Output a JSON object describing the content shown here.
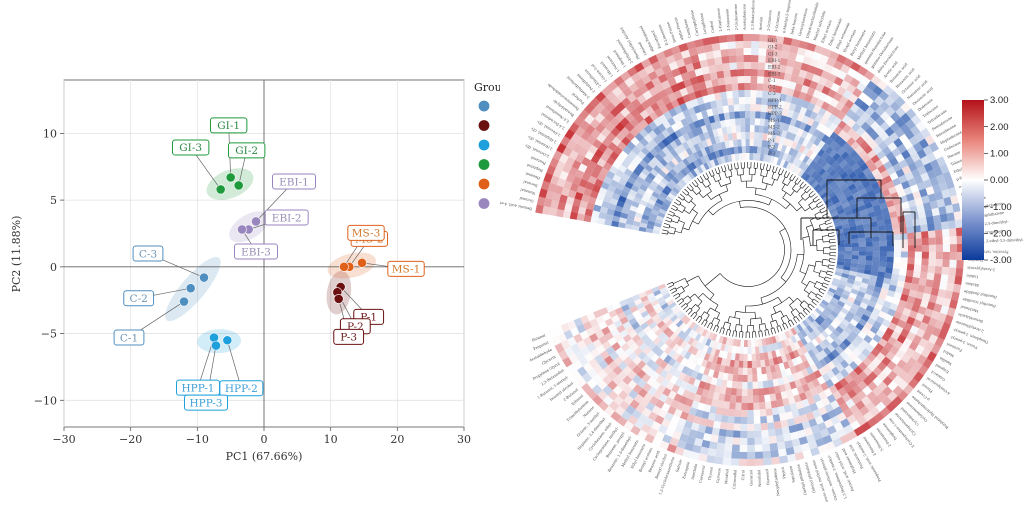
{
  "chart_data": [
    {
      "type": "scatter",
      "xlabel": "PC1 (67.66%)",
      "ylabel": "PC2 (11.88%)",
      "xlim": [
        -30,
        30
      ],
      "ylim": [
        -12,
        14
      ],
      "xticks": [
        -30,
        -20,
        -10,
        0,
        10,
        20,
        30
      ],
      "yticks": [
        -10,
        -5,
        0,
        5,
        10
      ],
      "xtick_labels": [
        "−30",
        "−20",
        "−10",
        "0",
        "10",
        "20",
        "30"
      ],
      "ytick_labels": [
        "−10",
        "−5",
        "0",
        "5",
        "10"
      ],
      "grid": true,
      "legend_title": "Grou",
      "legend_position": "right",
      "groups": [
        {
          "color": "#4f8fc0",
          "label_color": "#6e95b4",
          "points": [
            {
              "label": "C-1",
              "x": -12,
              "y": -2.6
            },
            {
              "label": "C-2",
              "x": -11,
              "y": -1.6
            },
            {
              "label": "C-3",
              "x": -9,
              "y": -0.8
            }
          ]
        },
        {
          "color": "#6b1010",
          "label_color": "#6b1a1a",
          "points": [
            {
              "label": "P-1",
              "x": 11.5,
              "y": -1.5
            },
            {
              "label": "P-2",
              "x": 11,
              "y": -1.9
            },
            {
              "label": "P-3",
              "x": 11.2,
              "y": -2.4
            }
          ]
        },
        {
          "color": "#1ea0dc",
          "label_color": "#3d9fd8",
          "points": [
            {
              "label": "HPP-1",
              "x": -7.5,
              "y": -5.3
            },
            {
              "label": "HPP-2",
              "x": -5.5,
              "y": -5.5
            },
            {
              "label": "HPP-3",
              "x": -7.2,
              "y": -5.9
            }
          ]
        },
        {
          "color": "#1e9a3c",
          "label_color": "#2f8a47",
          "points": [
            {
              "label": "GI-1",
              "x": -5,
              "y": 6.7
            },
            {
              "label": "GI-2",
              "x": -3.8,
              "y": 6.1
            },
            {
              "label": "GI-3",
              "x": -6.5,
              "y": 5.8
            }
          ]
        },
        {
          "color": "#e0601a",
          "label_color": "#d0762a",
          "points": [
            {
              "label": "MS-1",
              "x": 14.7,
              "y": 0.3
            },
            {
              "label": "MS-2",
              "x": 12.8,
              "y": 0
            },
            {
              "label": "MS-3",
              "x": 12,
              "y": 0
            }
          ]
        },
        {
          "color": "#9a86bf",
          "label_color": "#9a8fb8",
          "points": [
            {
              "label": "EBI-1",
              "x": -1.2,
              "y": 3.4
            },
            {
              "label": "EBI-2",
              "x": -2.3,
              "y": 2.8
            },
            {
              "label": "EBI-3",
              "x": -3.3,
              "y": 2.8
            }
          ]
        }
      ]
    },
    {
      "type": "heatmap",
      "layout": "circular",
      "samples": [
        "GI-1",
        "GI-2",
        "GI-3",
        "EBI-1",
        "EBI-2",
        "EBI-3",
        "C-1",
        "C-2",
        "C-3",
        "HPP-1",
        "HPP-2",
        "HPP-3",
        "MS-1",
        "MS-2",
        "MS-3",
        "P-1",
        "P-2",
        "P-3"
      ],
      "colorbar": {
        "min": -3,
        "max": 3,
        "colors": [
          "#0b3fa0",
          "#ffffff",
          "#c0171c"
        ],
        "ticks": [
          3,
          2,
          1,
          0,
          -1,
          -2,
          -3
        ],
        "tick_labels": [
          "3.00",
          "2.00",
          "1.00",
          "0.00",
          "-1.00",
          "-2.00",
          "-3.00"
        ]
      },
      "metabolite_labels": [
        "Benzoic acid, 4-ethyl-",
        "Octanal",
        "Nonanal",
        "Decanal",
        "Hexanal",
        "Heptanal",
        "Pentanal",
        "2-Octenal, (E)-",
        "2-Nonenal, (E)-",
        "2-Heptenal, (Z)-",
        "2-Decenal, (E)-",
        "2,4-Decadienal",
        "2,4-Nonadienal",
        "Benzaldehyde",
        "Benzeneacetaldehyde",
        "Furfural",
        "5-Methylfurfural",
        "2-Pentylfuran",
        "2-Ethylfuran",
        "1-Octen-3-ol",
        "1-Hexanol",
        "1-Pentanol",
        "1-Heptanol",
        "2-Ethylhexanol",
        "Phenylethyl Alcohol",
        "Linalool",
        "alpha-Terpineol",
        "Eucalyptol",
        "D-Limonene",
        "beta-Pinene",
        "alpha-Pinene",
        "Camphene",
        "Caryophyllene",
        "Longifolene",
        "Cedrol",
        "2-Heptanone",
        "2-Nonanone",
        "2-Undecanone",
        "Acetophenone",
        "2,3-Butanedione",
        "Acetoin",
        "2-Octanone",
        "3-Octanone",
        "6-Methyl-5-hepten-2-one",
        "beta-Ionone",
        "Geranylacetone",
        "Dihydroactinidiolide",
        "Methyl salicylate",
        "Ethyl acetate",
        "Ethyl hexanoate",
        "Ethyl octanoate",
        "Hexyl acetate",
        "Butyl butanoate",
        "Methyl hexanoate",
        "gamma-Nonalactone",
        "gamma-Decalactone",
        "delta-Decalactone",
        "Acetic acid",
        "Butanoic acid",
        "Hexanoic acid",
        "Octanoic acid",
        "Nonanoic acid",
        "Decanoic acid",
        "Dodecane",
        "Tridecane",
        "Tetradecane",
        "Pentadecane",
        "Hexadecane",
        "Heptadecane",
        "Undecane",
        "Decane",
        "Toluene",
        "Ethylbenzene",
        "p-Xylene",
        "o-Xylene",
        "Styrene",
        "Naphthalene",
        "1-Methylnaphthalene",
        "2-Methylnaphthalene",
        "Pyrazine, 2,5-dimethyl-",
        "Pyrazine, trimethyl-",
        "Pyrazine, 2-ethyl-3,5-dimethyl-",
        "Pyrazine, tetramethyl-",
        "Pyridine",
        "2-Acetylpyrrole",
        "Indole",
        "Skatole",
        "Dimethyl disulfide",
        "Dimethyl trisulfide",
        "Methional",
        "Benzothiazole",
        "2-Acetylthiazole",
        "Thiophene, 2-pentyl-",
        "Furan, 2-pentyl-",
        "Furaneol",
        "Maltol",
        "Vanillin",
        "Eugenol",
        "Guaiacol",
        "4-Vinylguaiacol",
        "Phenol",
        "p-Cresol",
        "Butylated Hydroxytoluene",
        "Cyclohexanone",
        "Cyclohexanol",
        "Cyclopentanone",
        "2-Cyclopenten-1-one",
        "Isophorone",
        "2-Pentanone",
        "3-Hexanone",
        "2-Hexanone",
        "Propanoic acid, 2-methyl-",
        "Pentanoic acid",
        "Heptanoic acid",
        "Formic acid, octyl ester",
        "1,3-Heptadiene, 3-methyl-",
        "Oxime-, methoxy-phenyl-",
        "Hexadecanoic acid, methyl ester",
        "Dibutyl phthalate",
        "Diethyl phthalate",
        "Squalene",
        "Phytol",
        "Neophytadiene",
        "Farnesol",
        "Nerolidol",
        "Geraniol",
        "Citral",
        "Citronellal",
        "Menthol",
        "Carvone",
        "Thymol",
        "Carvacrol",
        "Anethole",
        "Estragole",
        "Safrole",
        "1,2-Cyclohexanedione",
        "Benzyl alcohol",
        "Benzoic acid",
        "Benzyl acetate",
        "Ethyl benzoate",
        "Methyl benzoate",
        "Benzene, 1,3-dimethyl-",
        "Benzene, propyl-",
        "Cyclopentane, methyl-",
        "Cyclohexane, ethyl-",
        "Heptane, 2,4-dimethyl-",
        "Octane, 3-methyl-",
        "Nonane",
        "Trimethylamine",
        "Ethanol",
        "2-Butanol",
        "Isoamyl alcohol",
        "1-Butanol, 3-methyl-",
        "2,3-Butanediol",
        "Propylene Glycol",
        "Glycerin",
        "Acetaldehyde",
        "Propanal",
        "Butanal"
      ]
    }
  ]
}
